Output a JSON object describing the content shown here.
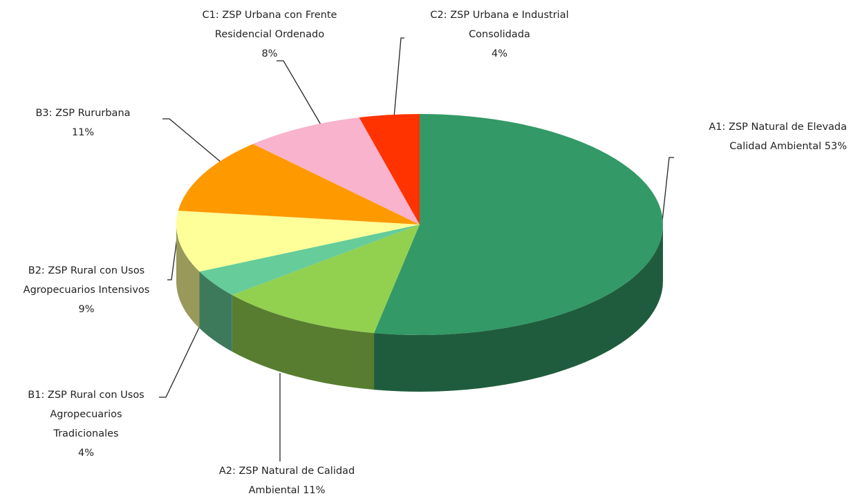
{
  "chart_data": {
    "type": "pie",
    "categories": [
      "A1: ZSP Natural de Elevada Calidad Ambiental",
      "A2: ZSP Natural de Calidad Ambiental",
      "B1: ZSP Rural con Usos Agropecuarios Tradicionales",
      "B2: ZSP Rural con Usos Agropecuarios Intensivos",
      "B3: ZSP Rururbana",
      "C1: ZSP Urbana con Frente Residencial Ordenado",
      "C2: ZSP Urbana e Industrial Consolidada"
    ],
    "values": [
      53,
      11,
      4,
      9,
      11,
      8,
      4
    ],
    "value_labels": [
      "53%",
      "11%",
      "4%",
      "9%",
      "11%",
      "8%",
      "4%"
    ],
    "colors": [
      "#339966",
      "#92d050",
      "#66cc99",
      "#ffff99",
      "#ff9900",
      "#f9b3cc",
      "#ff3300"
    ]
  }
}
